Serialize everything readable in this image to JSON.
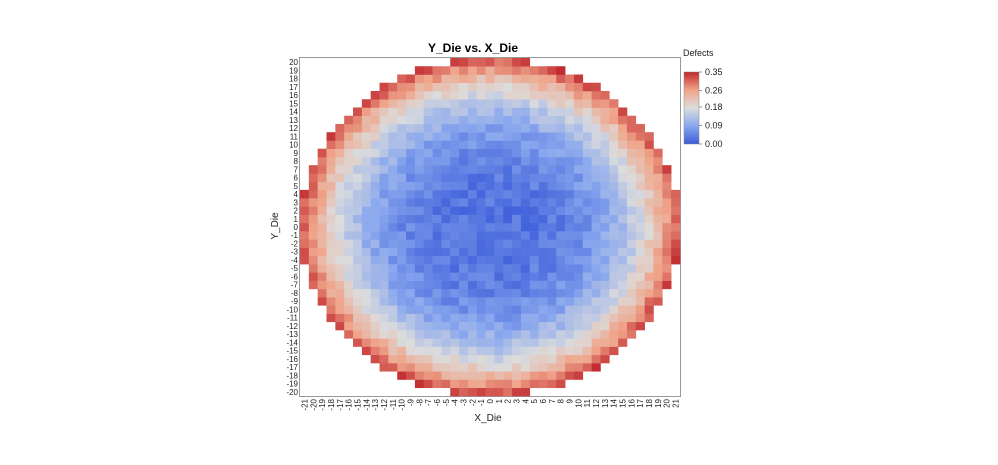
{
  "chart_data": {
    "type": "heatmap",
    "title": "Y_Die vs. X_Die",
    "xlabel": "X_Die",
    "ylabel": "Y_Die",
    "x_range": [
      -21,
      21
    ],
    "y_range": [
      -20,
      20
    ],
    "wafer_shape": "circle",
    "grid": false,
    "legend": {
      "title": "Defects",
      "placement": "top-right",
      "min": 0.0,
      "max": 0.35,
      "ticks": [
        "0.35",
        "0.26",
        "0.18",
        "0.09",
        "0.00"
      ],
      "tick_values": [
        0.35,
        0.26,
        0.18,
        0.09,
        0.0
      ]
    },
    "color_scale": [
      {
        "value": 0.0,
        "color": "#3a5bd9"
      },
      {
        "value": 0.09,
        "color": "#8aa8ee"
      },
      {
        "value": 0.18,
        "color": "#dcdcdc"
      },
      {
        "value": 0.26,
        "color": "#f0a58a"
      },
      {
        "value": 0.35,
        "color": "#c0272d"
      }
    ],
    "value_pattern": "radial: approx 0.02-0.06 at center rising to 0.20-0.35 at wafer edge"
  }
}
